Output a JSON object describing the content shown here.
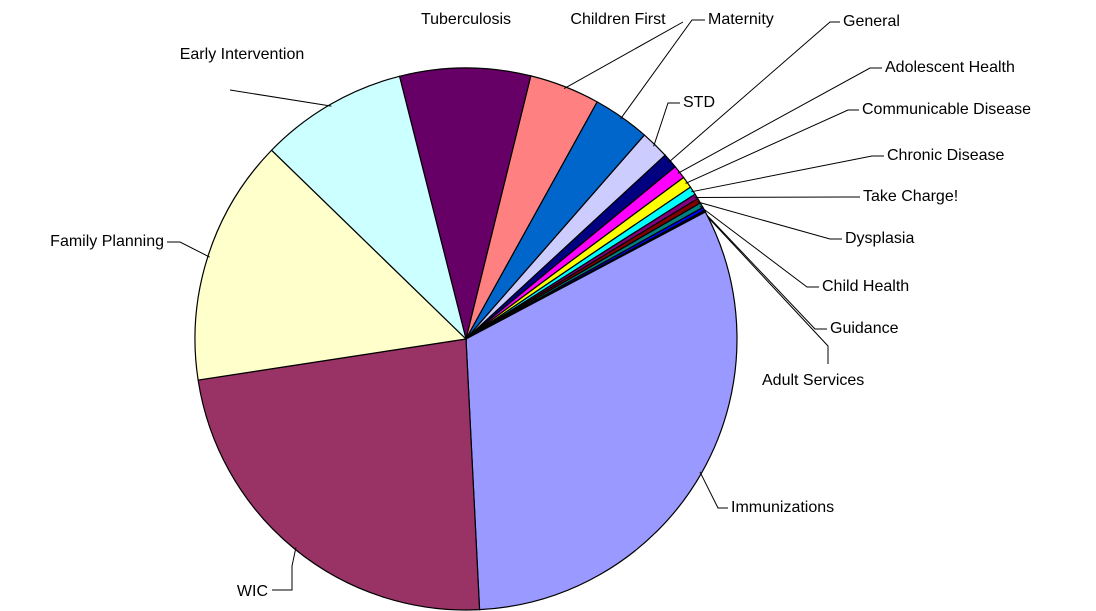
{
  "chart_data": {
    "type": "pie",
    "categories": [
      "Tuberculosis",
      "Children First",
      "Maternity",
      "STD",
      "General",
      "Adolescent Health",
      "Communicable Disease",
      "Chronic Disease",
      "Take Charge!",
      "Dysplasia",
      "Child Health",
      "Guidance",
      "Adult Services",
      "Immunizations",
      "WIC",
      "Family Planning",
      "Early Intervention"
    ],
    "values": [
      7.8,
      4.2,
      3.4,
      1.7,
      0.9,
      0.8,
      0.7,
      0.5,
      0.3,
      0.3,
      0.3,
      0.2,
      0.1,
      32.0,
      23.4,
      14.7,
      8.8
    ],
    "colors": [
      "#660066",
      "#ff8080",
      "#0066cc",
      "#ccccff",
      "#000080",
      "#ff00ff",
      "#ffff00",
      "#00ffff",
      "#800080",
      "#800000",
      "#008080",
      "#0000ff",
      "#000000",
      "#9999ff",
      "#993366",
      "#ffffcc",
      "#ccffff"
    ]
  }
}
